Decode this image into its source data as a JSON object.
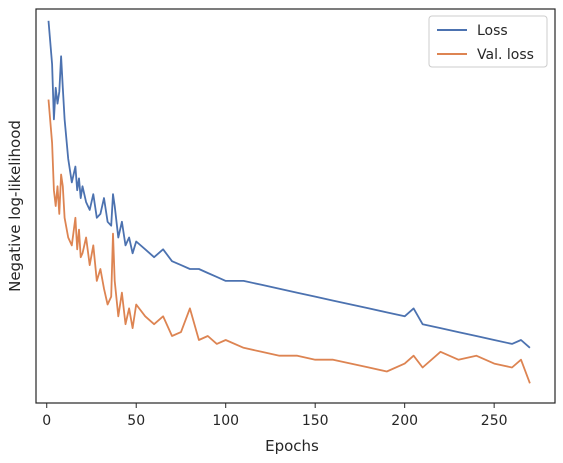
{
  "chart_data": {
    "type": "line",
    "title": "",
    "xlabel": "Epochs",
    "ylabel": "Negative log-likelihood",
    "xlim": [
      -6,
      284
    ],
    "ylim": [
      0,
      1
    ],
    "y_scale_note": "unlabeled",
    "x_ticks": [
      0,
      50,
      100,
      150,
      200,
      250
    ],
    "x_tick_labels": [
      "0",
      "50",
      "100",
      "150",
      "200",
      "250"
    ],
    "grid": false,
    "legend_position": "top-right",
    "series": [
      {
        "name": "Loss",
        "color": "#4c72b0",
        "x": [
          1,
          3,
          4,
          5,
          6,
          7,
          8,
          9,
          10,
          12,
          14,
          16,
          17,
          18,
          19,
          20,
          22,
          24,
          26,
          28,
          30,
          32,
          34,
          36,
          37,
          38,
          40,
          42,
          44,
          46,
          48,
          50,
          55,
          60,
          65,
          70,
          75,
          80,
          85,
          90,
          95,
          100,
          110,
          120,
          130,
          140,
          150,
          160,
          170,
          180,
          190,
          200,
          205,
          210,
          220,
          230,
          240,
          250,
          260,
          265,
          270
        ],
        "y": [
          0.97,
          0.86,
          0.72,
          0.8,
          0.76,
          0.79,
          0.88,
          0.8,
          0.72,
          0.62,
          0.56,
          0.6,
          0.54,
          0.57,
          0.52,
          0.55,
          0.51,
          0.49,
          0.53,
          0.47,
          0.48,
          0.52,
          0.46,
          0.45,
          0.53,
          0.5,
          0.42,
          0.46,
          0.4,
          0.42,
          0.38,
          0.41,
          0.39,
          0.37,
          0.39,
          0.36,
          0.35,
          0.34,
          0.34,
          0.33,
          0.32,
          0.31,
          0.31,
          0.3,
          0.29,
          0.28,
          0.27,
          0.26,
          0.25,
          0.24,
          0.23,
          0.22,
          0.24,
          0.2,
          0.19,
          0.18,
          0.17,
          0.16,
          0.15,
          0.16,
          0.14
        ]
      },
      {
        "name": "Val. loss",
        "color": "#dd8452",
        "x": [
          1,
          3,
          4,
          5,
          6,
          7,
          8,
          9,
          10,
          12,
          14,
          16,
          17,
          18,
          19,
          20,
          22,
          24,
          26,
          28,
          30,
          32,
          34,
          36,
          37,
          38,
          40,
          42,
          44,
          46,
          48,
          50,
          55,
          60,
          65,
          70,
          75,
          80,
          85,
          90,
          95,
          100,
          110,
          120,
          130,
          140,
          150,
          160,
          170,
          180,
          190,
          200,
          205,
          210,
          220,
          230,
          240,
          250,
          260,
          265,
          270
        ],
        "y": [
          0.77,
          0.66,
          0.54,
          0.5,
          0.55,
          0.48,
          0.58,
          0.55,
          0.47,
          0.42,
          0.4,
          0.47,
          0.39,
          0.44,
          0.37,
          0.38,
          0.42,
          0.35,
          0.4,
          0.31,
          0.34,
          0.29,
          0.25,
          0.27,
          0.43,
          0.31,
          0.22,
          0.28,
          0.2,
          0.24,
          0.19,
          0.25,
          0.22,
          0.2,
          0.22,
          0.17,
          0.18,
          0.24,
          0.16,
          0.17,
          0.15,
          0.16,
          0.14,
          0.13,
          0.12,
          0.12,
          0.11,
          0.11,
          0.1,
          0.09,
          0.08,
          0.1,
          0.12,
          0.09,
          0.13,
          0.11,
          0.12,
          0.1,
          0.09,
          0.11,
          0.05
        ]
      }
    ]
  }
}
